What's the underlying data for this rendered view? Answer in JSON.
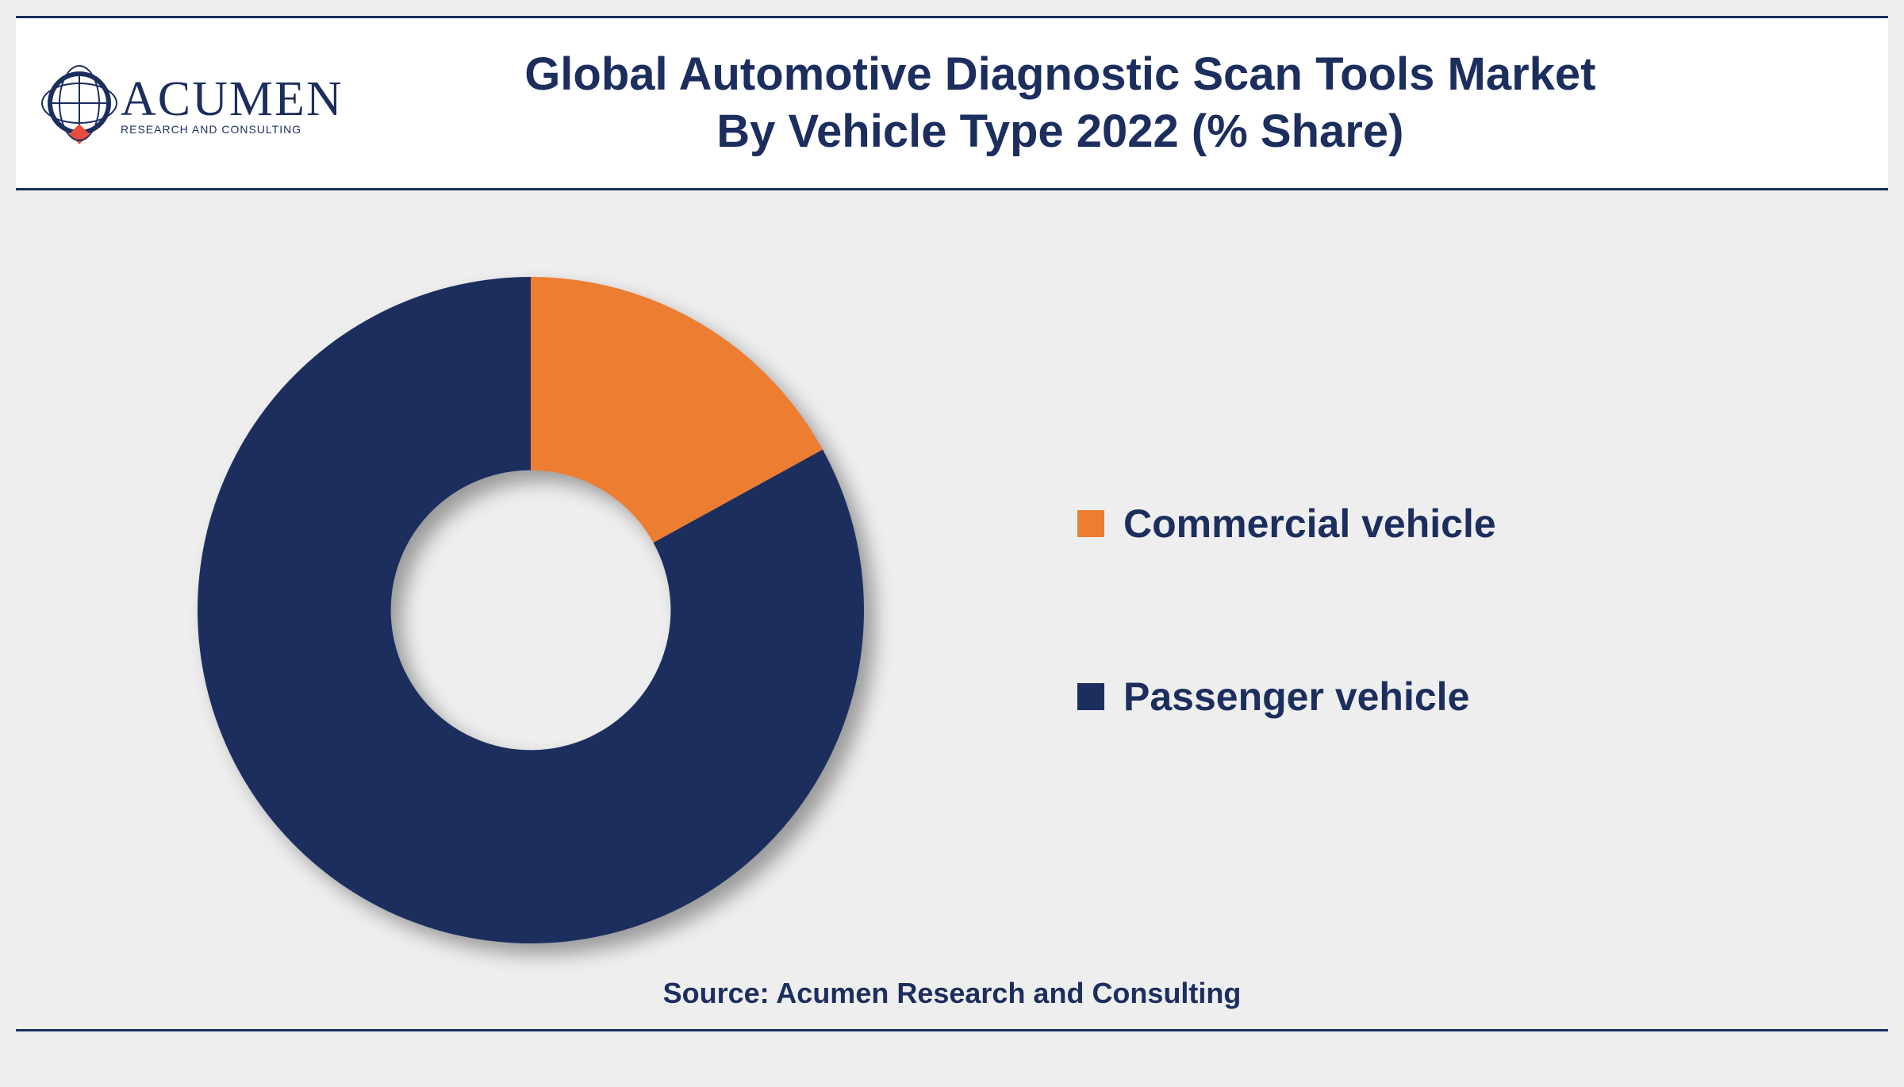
{
  "header": {
    "logo_name": "ACUMEN",
    "logo_sub": "RESEARCH AND CONSULTING",
    "title_line1": "Global Automotive Diagnostic Scan Tools Market",
    "title_line2": "By Vehicle Type 2022 (% Share)"
  },
  "chart": {
    "type": "donut",
    "inner_radius_pct": 42,
    "start_angle_deg": 0,
    "direction": "clockwise",
    "background_color": "#eeeeee",
    "shadow": true,
    "slices": [
      {
        "label": "Commercial vehicle",
        "value": 17,
        "color": "#ed7d31"
      },
      {
        "label": "Passenger vehicle",
        "value": 83,
        "color": "#1c2e5e"
      }
    ]
  },
  "legend": {
    "font_size": 50,
    "text_color": "#1c2e5e",
    "items": [
      {
        "label": "Commercial vehicle",
        "swatch": "#ed7d31"
      },
      {
        "label": "Passenger vehicle",
        "swatch": "#1c2e5e"
      }
    ]
  },
  "source": "Source: Acumen Research and Consulting",
  "colors": {
    "brand": "#1c2e5e",
    "accent": "#ed7d31",
    "page_bg": "#eeeeee",
    "header_bg": "#ffffff",
    "logo_accent": "#e74c3c"
  }
}
